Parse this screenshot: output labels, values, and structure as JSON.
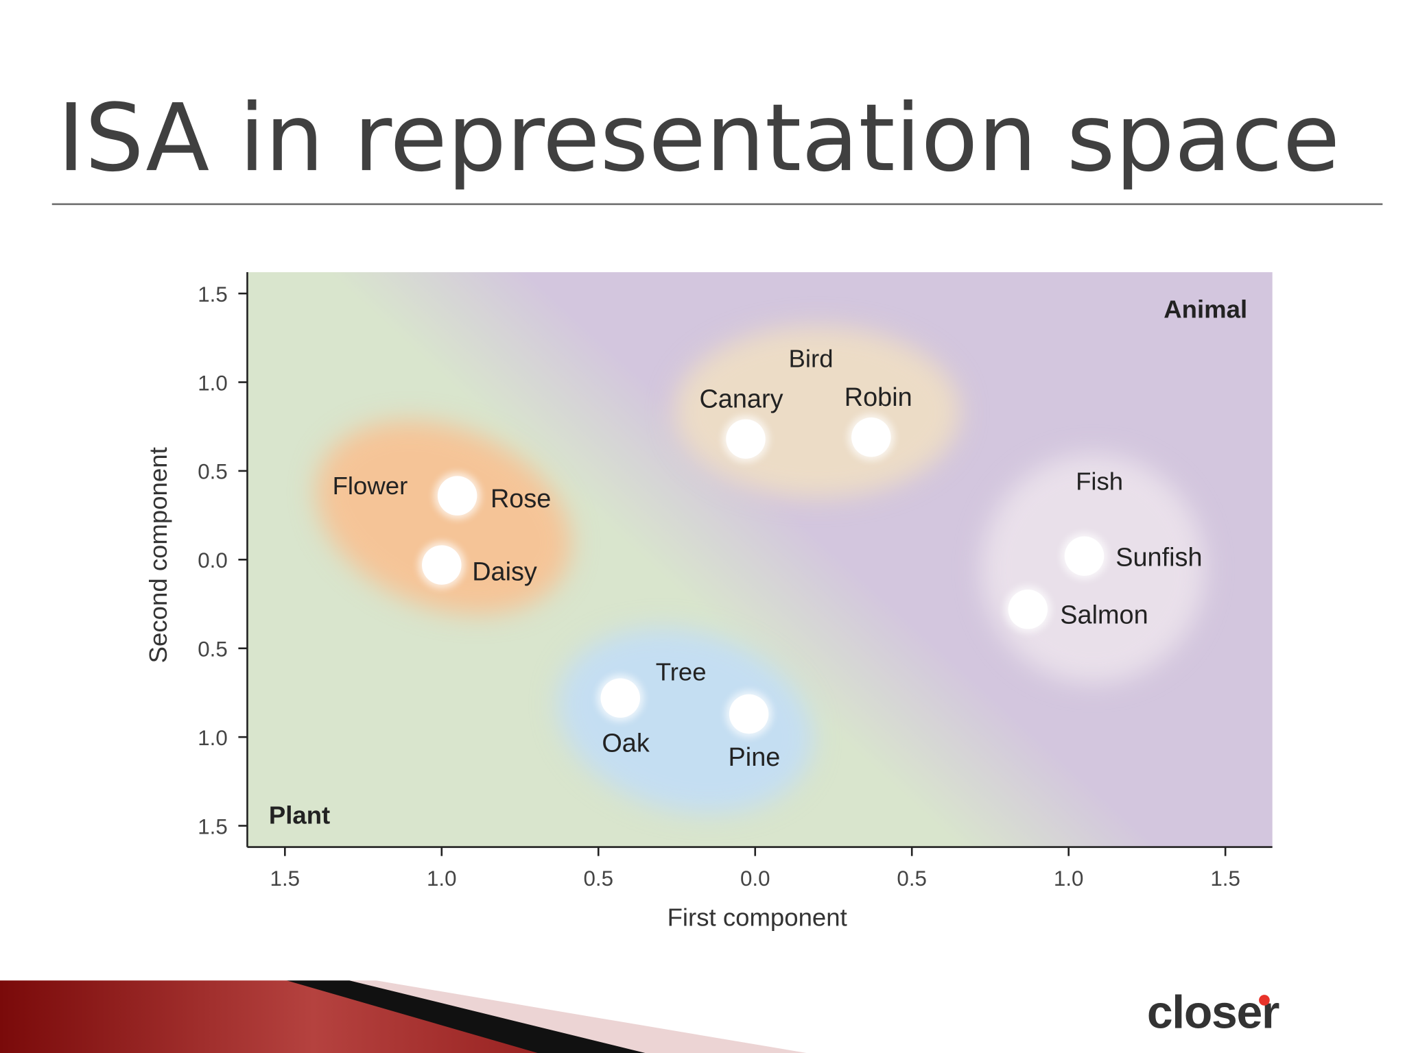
{
  "chart_data": {
    "type": "scatter",
    "title": "ISA in representation space",
    "x_label": "First component",
    "y_label": "Second component",
    "labels": [
      "Rose",
      "Daisy",
      "Canary",
      "Robin",
      "Sunfish",
      "Salmon",
      "Oak",
      "Pine"
    ],
    "x": [
      -0.95,
      -1.0,
      -0.03,
      0.37,
      1.05,
      0.87,
      -0.43,
      -0.02
    ],
    "values": [
      0.36,
      -0.03,
      0.68,
      0.69,
      0.02,
      -0.28,
      -0.78,
      -0.87
    ],
    "color": "#ffffff",
    "groups": [
      "Flower",
      "Bird",
      "Fish",
      "Tree"
    ],
    "regions": [
      "Animal",
      "Plant"
    ],
    "xlim": [
      -1.62,
      1.65
    ],
    "ylim": [
      -1.62,
      1.62
    ],
    "xticks": [
      {
        "value": -1.5,
        "label": "1.5"
      },
      {
        "value": -1.0,
        "label": "1.0"
      },
      {
        "value": -0.5,
        "label": "0.5"
      },
      {
        "value": 0.0,
        "label": "0.0"
      },
      {
        "value": 0.5,
        "label": "0.5"
      },
      {
        "value": 1.0,
        "label": "1.0"
      },
      {
        "value": 1.5,
        "label": "1.5"
      }
    ],
    "yticks": [
      {
        "value": -1.5,
        "label": "1.5"
      },
      {
        "value": -1.0,
        "label": "1.0"
      },
      {
        "value": -0.5,
        "label": "0.5"
      },
      {
        "value": 0.0,
        "label": "0.0"
      },
      {
        "value": 0.5,
        "label": "0.5"
      },
      {
        "value": 1.0,
        "label": "1.0"
      },
      {
        "value": 1.5,
        "label": "1.5"
      }
    ]
  },
  "footer": {
    "logo": "closer"
  }
}
